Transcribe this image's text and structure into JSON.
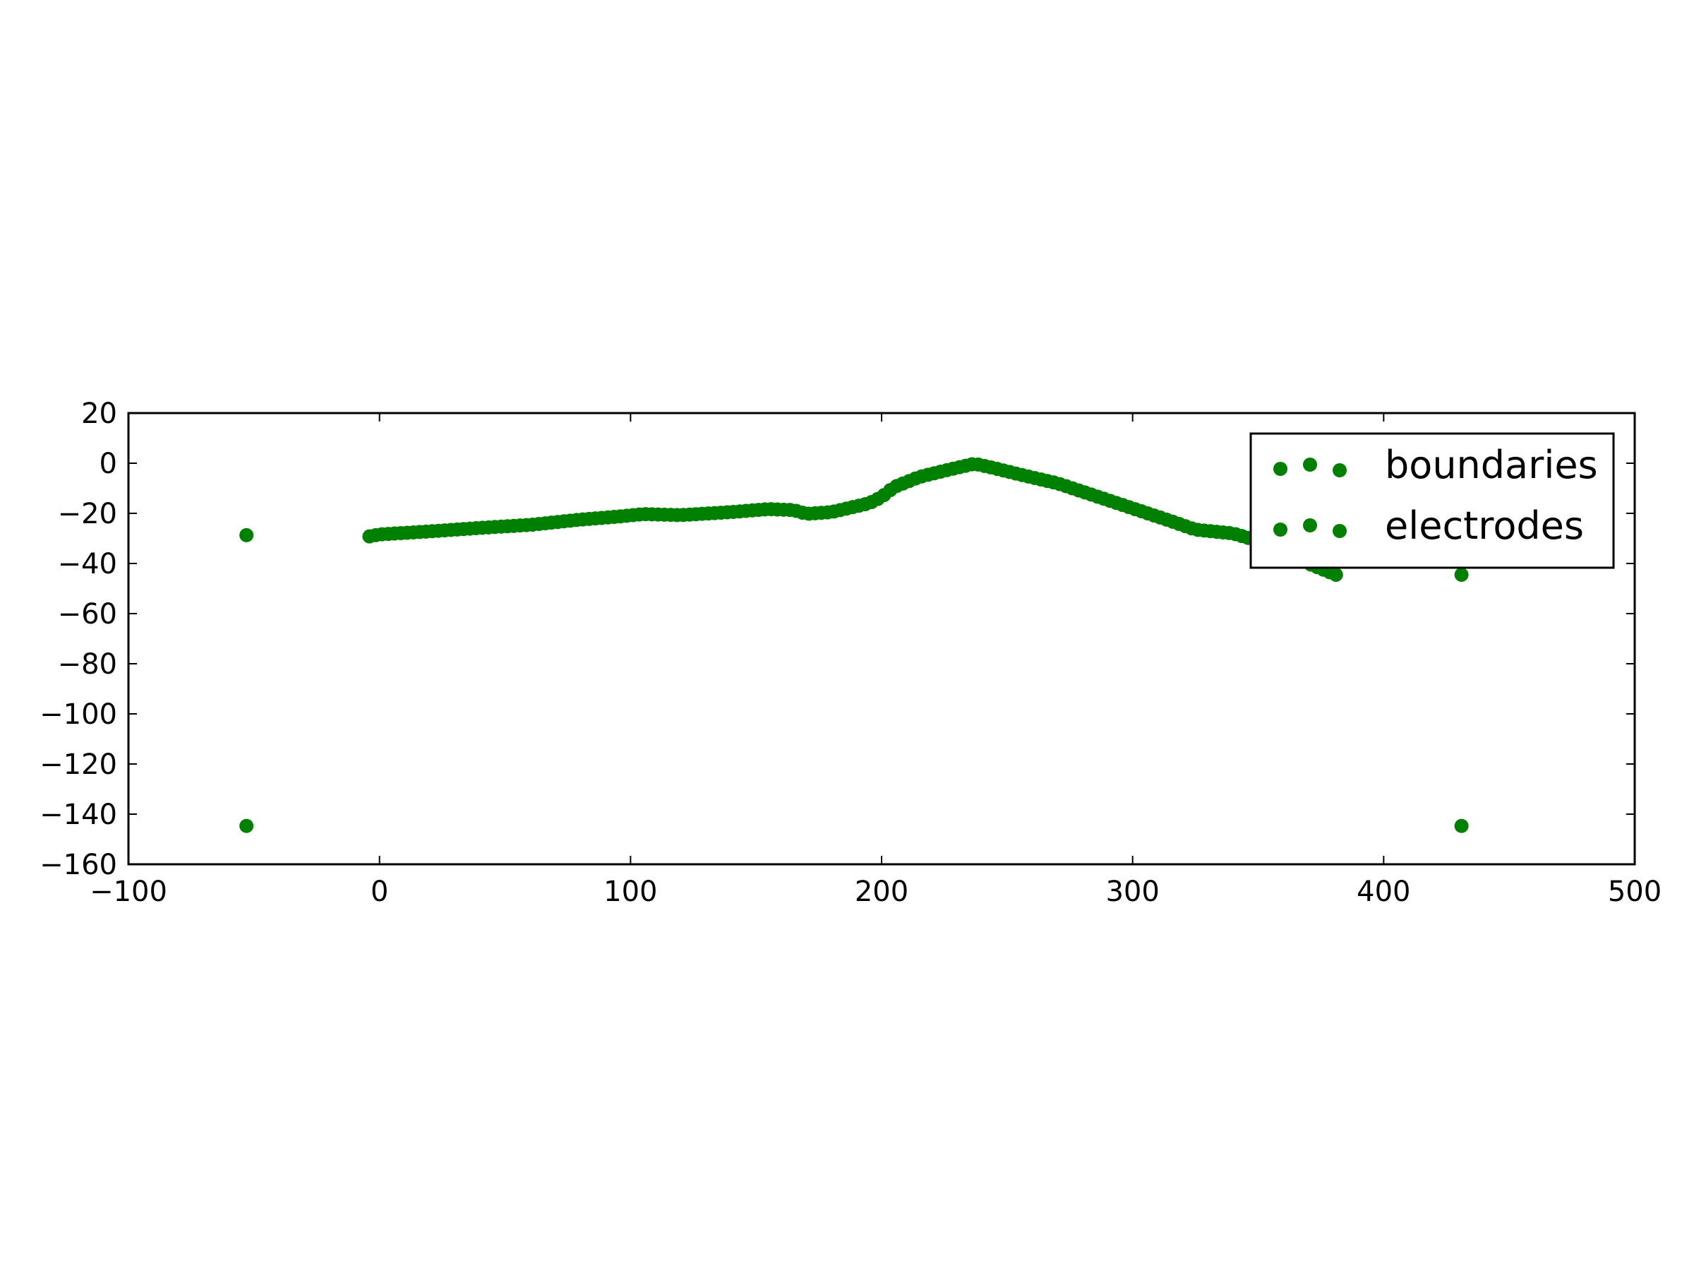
{
  "chart_data": {
    "type": "scatter",
    "title": "",
    "xlabel": "",
    "ylabel": "",
    "xlim": [
      -100,
      500
    ],
    "ylim": [
      -160,
      20
    ],
    "grid": false,
    "legend_position": "top-right",
    "x_ticks": [
      -100,
      0,
      100,
      200,
      300,
      400,
      500
    ],
    "y_ticks": [
      20,
      0,
      -20,
      -40,
      -60,
      -80,
      -100,
      -120,
      -140,
      -160
    ],
    "x_tick_labels": [
      "−100",
      "0",
      "100",
      "200",
      "300",
      "400",
      "500"
    ],
    "y_tick_labels": [
      "20",
      "0",
      "−20",
      "−40",
      "−60",
      "−80",
      "−100",
      "−120",
      "−140",
      "−160"
    ],
    "series": [
      {
        "name": "boundaries",
        "color": "#008000",
        "points": [
          [
            -53,
            -28.7
          ],
          [
            -53,
            -144.7
          ],
          [
            431,
            -44.5
          ],
          [
            431,
            -144.7
          ]
        ]
      },
      {
        "name": "electrodes",
        "color": "#008000",
        "profile": [
          [
            -4,
            -29.2
          ],
          [
            0,
            -28.4
          ],
          [
            20,
            -27.2
          ],
          [
            40,
            -25.8
          ],
          [
            60,
            -24.6
          ],
          [
            80,
            -22.5
          ],
          [
            95,
            -21.3
          ],
          [
            105,
            -20.3
          ],
          [
            120,
            -20.7
          ],
          [
            140,
            -19.5
          ],
          [
            155,
            -18.3
          ],
          [
            165,
            -18.7
          ],
          [
            170,
            -20.2
          ],
          [
            180,
            -19.5
          ],
          [
            195,
            -16.0
          ],
          [
            200,
            -13.5
          ],
          [
            205,
            -9.5
          ],
          [
            215,
            -5.5
          ],
          [
            225,
            -3.0
          ],
          [
            237,
            -0.2
          ],
          [
            245,
            -2.0
          ],
          [
            255,
            -4.5
          ],
          [
            270,
            -8.0
          ],
          [
            285,
            -13.0
          ],
          [
            300,
            -18.0
          ],
          [
            315,
            -23.0
          ],
          [
            325,
            -26.5
          ],
          [
            340,
            -28.0
          ],
          [
            350,
            -31.0
          ],
          [
            360,
            -35.0
          ],
          [
            370,
            -40.0
          ],
          [
            381,
            -44.5
          ]
        ],
        "step": 2.5
      }
    ]
  }
}
